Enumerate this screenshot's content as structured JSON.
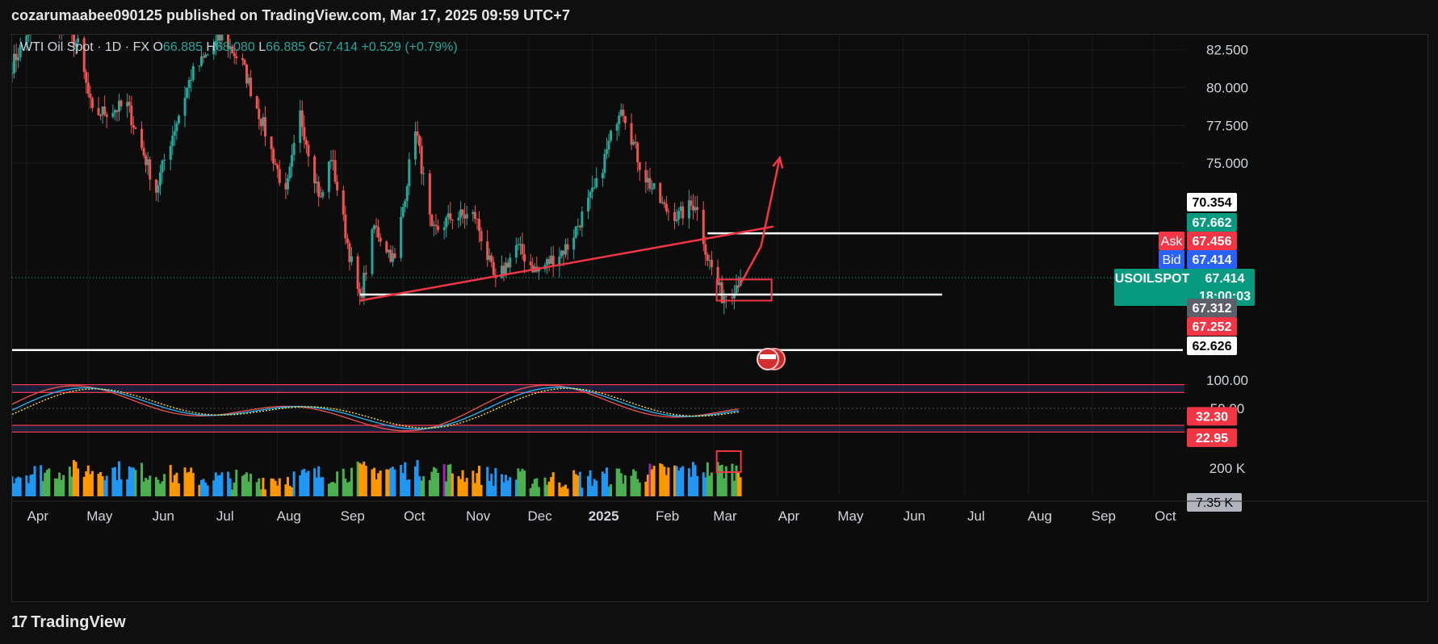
{
  "header": {
    "published": "cozarumaabee090125 published on TradingView.com, Mar 17, 2025 09:59 UTC+7"
  },
  "footer": {
    "brand": "TradingView"
  },
  "symbol_info": {
    "name": "WTI Oil Spot · 1D · FX",
    "o_label": "O",
    "o": "66.885",
    "h_label": "H",
    "h": "68.080",
    "l_label": "L",
    "l": "66.885",
    "c_label": "C",
    "c": "67.414",
    "change": "+0.529 (+0.79%)"
  },
  "colors": {
    "up": "#26a69a",
    "down": "#ef5350",
    "annotation": "#f23645",
    "bid": "#2962ff",
    "stoch_k": "#ef5350",
    "stoch_cyan": "#29b6f6",
    "stoch_yellow": "#ffeb3b",
    "vol_blue": "#2196f3",
    "vol_green": "#4caf50",
    "vol_orange": "#ff9800",
    "vol_purple": "#9c27b0"
  },
  "price_labels": [
    {
      "text": "70.354",
      "style": "white"
    },
    {
      "text": "67.662",
      "style": "teal"
    },
    {
      "text": "Ask",
      "value": "67.456",
      "style": "red"
    },
    {
      "text": "Bid",
      "value": "67.414",
      "style": "blue"
    },
    {
      "text": "USOILSPOT",
      "value": "67.414",
      "countdown": "18:00:03",
      "style": "teal"
    },
    {
      "text": "67.312",
      "style": "gray"
    },
    {
      "text": "67.252",
      "style": "red"
    },
    {
      "text": "62.626",
      "style": "white"
    }
  ],
  "osc_labels": {
    "k": "32.30",
    "d": "22.95"
  },
  "vol_label": "7.35 K",
  "chart_data": {
    "type": "candlestick",
    "title": "WTI Oil Spot · 1D · FX",
    "y_ticks": [
      "82.500",
      "80.000",
      "77.500",
      "75.000"
    ],
    "ylim": [
      61.6,
      83.5
    ],
    "x_ticks": [
      "Apr",
      "May",
      "Jun",
      "Jul",
      "Aug",
      "Sep",
      "Oct",
      "Nov",
      "Dec",
      "2025",
      "Feb",
      "Mar",
      "Apr",
      "May",
      "Jun",
      "Jul",
      "Aug",
      "Sep",
      "Oct"
    ],
    "x_range": [
      "2024-03-25",
      "2025-10-15"
    ],
    "anchors": [
      [
        "2024-03-25",
        81.5
      ],
      [
        "2024-04-05",
        84.5
      ],
      [
        "2024-04-12",
        85.2
      ],
      [
        "2024-04-26",
        82.8
      ],
      [
        "2024-05-03",
        78.2
      ],
      [
        "2024-05-20",
        78.8
      ],
      [
        "2024-06-03",
        73.2
      ],
      [
        "2024-06-07",
        75.2
      ],
      [
        "2024-06-20",
        80.8
      ],
      [
        "2024-07-05",
        83.4
      ],
      [
        "2024-07-15",
        81.5
      ],
      [
        "2024-07-25",
        77.5
      ],
      [
        "2024-08-05",
        72.8
      ],
      [
        "2024-08-12",
        78.2
      ],
      [
        "2024-08-22",
        72.5
      ],
      [
        "2024-08-27",
        75.5
      ],
      [
        "2024-09-05",
        69.0
      ],
      [
        "2024-09-10",
        65.9
      ],
      [
        "2024-09-17",
        70.8
      ],
      [
        "2024-09-27",
        68.5
      ],
      [
        "2024-10-07",
        77.5
      ],
      [
        "2024-10-15",
        70.3
      ],
      [
        "2024-10-25",
        71.5
      ],
      [
        "2024-11-05",
        71.5
      ],
      [
        "2024-11-15",
        67.0
      ],
      [
        "2024-11-25",
        69.5
      ],
      [
        "2024-12-05",
        67.8
      ],
      [
        "2024-12-20",
        69.5
      ],
      [
        "2025-01-03",
        73.5
      ],
      [
        "2025-01-15",
        79.0
      ],
      [
        "2025-01-25",
        74.5
      ],
      [
        "2025-02-05",
        72.0
      ],
      [
        "2025-02-12",
        71.5
      ],
      [
        "2025-02-20",
        72.4
      ],
      [
        "2025-02-26",
        68.8
      ],
      [
        "2025-03-05",
        66.2
      ],
      [
        "2025-03-10",
        66.6
      ],
      [
        "2025-03-14",
        67.4
      ]
    ],
    "last_candle": {
      "open": 66.885,
      "high": 68.08,
      "low": 66.885,
      "close": 67.414
    },
    "levels": [
      {
        "value": 70.354,
        "from": "2025-02-26",
        "to": "2025-10-15"
      },
      {
        "value": 66.3,
        "from": "2024-09-10",
        "to": "2025-06-20"
      },
      {
        "value": 62.626,
        "from": "2024-03-25",
        "to": "2025-10-15"
      }
    ],
    "trendline": [
      [
        "2024-09-10",
        65.9
      ],
      [
        "2025-03-30",
        70.8
      ]
    ],
    "projection_arrow": [
      [
        "2025-03-14",
        67.0
      ],
      [
        "2025-03-24",
        69.5
      ],
      [
        "2025-04-02",
        75.3
      ]
    ],
    "oscillator": {
      "axis": [
        "100.00",
        "50.00"
      ],
      "bands": [
        [
          78,
          92
        ],
        [
          8,
          20
        ]
      ],
      "k_last": 32.3,
      "d_last": 22.95
    },
    "volume": {
      "axis": "200 K",
      "last": "7.35 K",
      "colors_cycle": [
        "blue",
        "green",
        "orange"
      ]
    }
  }
}
